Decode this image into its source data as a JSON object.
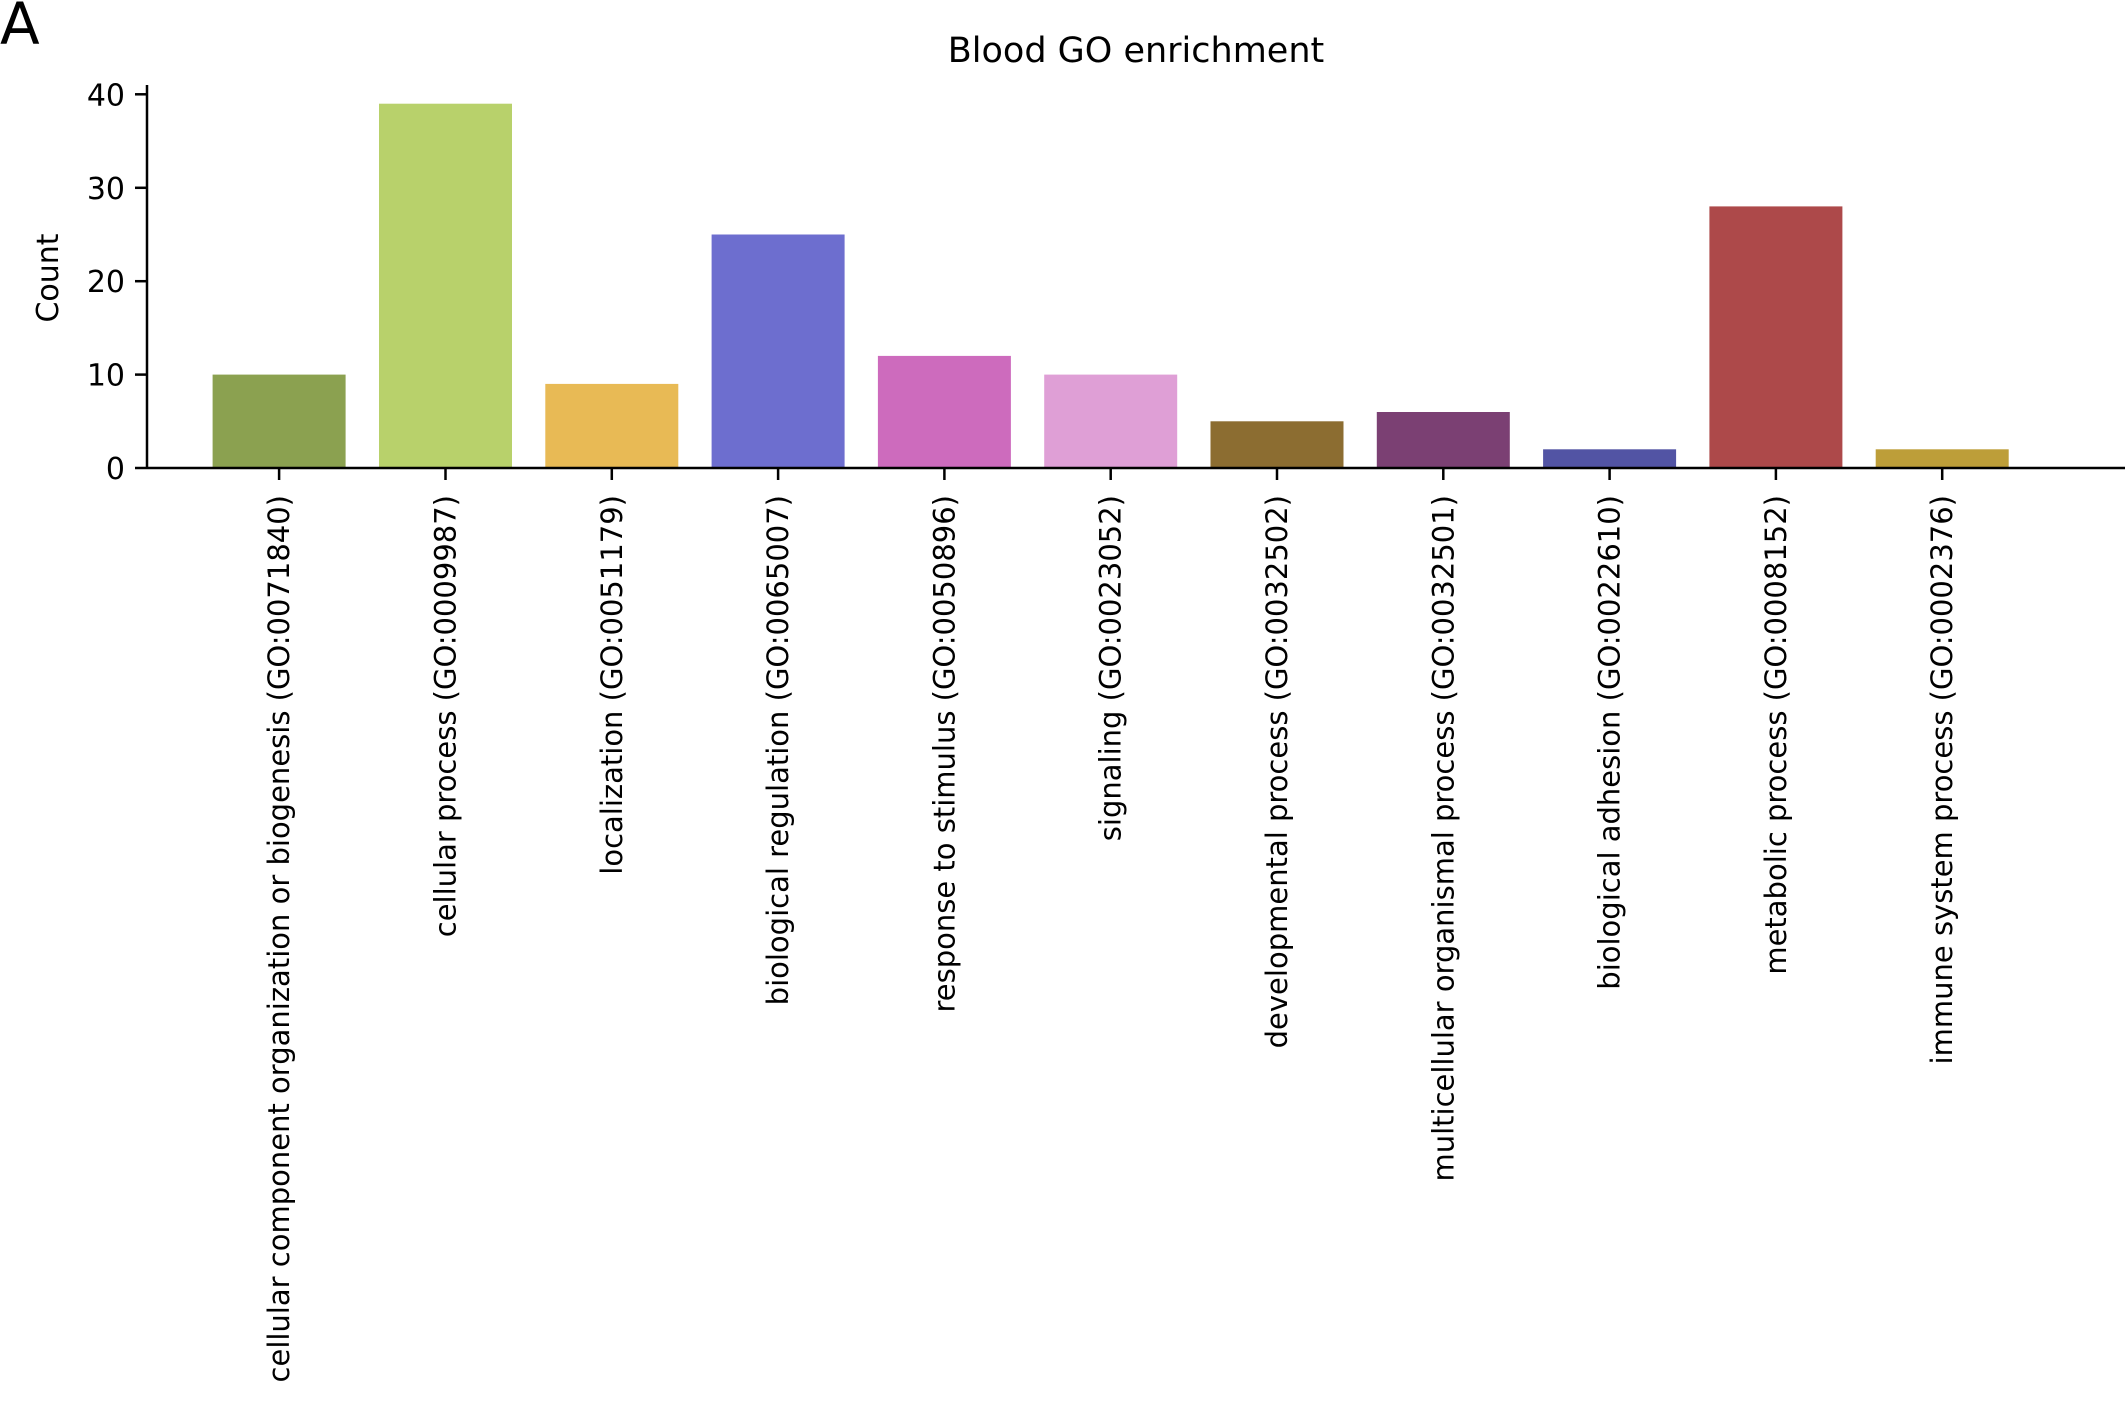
{
  "panel_label": "A",
  "chart_data": {
    "type": "bar",
    "title": "Blood GO enrichment",
    "xlabel": "",
    "ylabel": "Count",
    "ylim": [
      0,
      41
    ],
    "yticks": [
      0,
      10,
      20,
      30,
      40
    ],
    "grid": false,
    "legend": "none",
    "categories": [
      "cellular component organization or biogenesis (GO:0071840)",
      "cellular process (GO:0009987)",
      "localization (GO:0051179)",
      "biological regulation (GO:0065007)",
      "response to stimulus (GO:0050896)",
      "signaling (GO:0023052)",
      "developmental process (GO:0032502)",
      "multicellular organismal process (GO:0032501)",
      "biological adhesion (GO:0022610)",
      "metabolic process (GO:0008152)",
      "immune system process (GO:0002376)"
    ],
    "values": [
      10,
      39,
      9,
      25,
      12,
      10,
      5,
      6,
      2,
      28,
      2
    ],
    "colors": [
      "#8ba150",
      "#b8d16b",
      "#e8ba55",
      "#6d6ecf",
      "#cd6bbd",
      "#df9fd6",
      "#8c6d31",
      "#7b4073",
      "#5254a4",
      "#ad494a",
      "#bd9e39"
    ]
  }
}
